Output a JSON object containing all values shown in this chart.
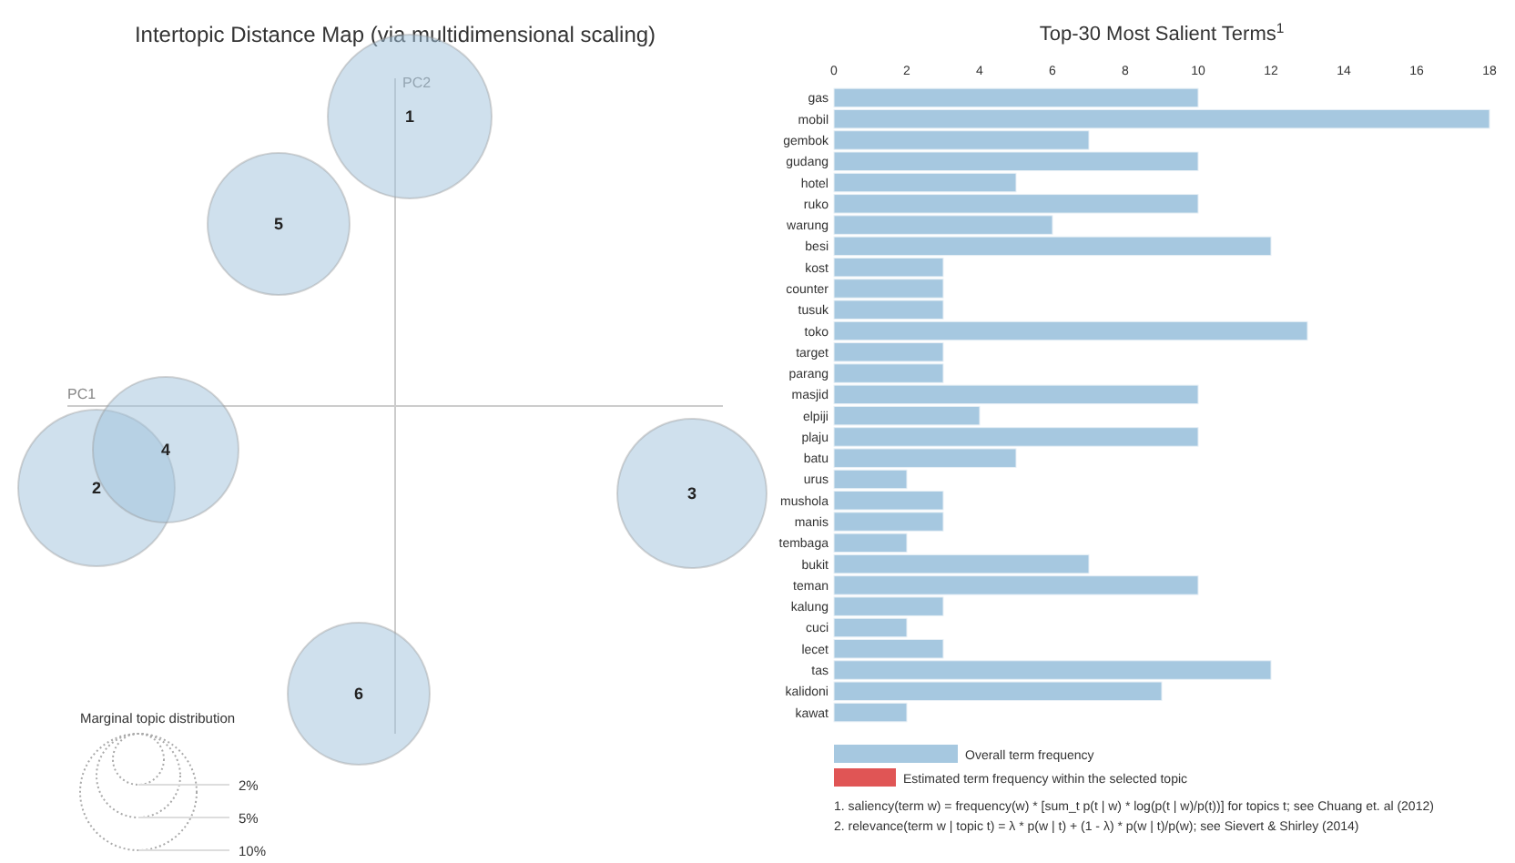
{
  "chart_data": [
    {
      "type": "other",
      "title": "Intertopic Distance Map (via multidimensional scaling)",
      "xlabel": "PC1",
      "ylabel": "PC2",
      "legend_title": "Marginal topic distribution",
      "annotations": [
        "1",
        "2",
        "3",
        "4",
        "5",
        "6",
        "2%",
        "5%",
        "10%"
      ]
    },
    {
      "type": "bar",
      "orientation": "horizontal",
      "title": "Top-30 Most Salient Terms$^{1}$",
      "xlim": [
        0,
        18
      ],
      "xticks": [
        0,
        2,
        4,
        6,
        8,
        10,
        12,
        14,
        16,
        18
      ],
      "grid": false,
      "legend": "bottom",
      "categories": [
        "gas",
        "mobil",
        "gembok",
        "gudang",
        "hotel",
        "ruko",
        "warung",
        "besi",
        "kost",
        "counter",
        "tusuk",
        "toko",
        "target",
        "parang",
        "masjid",
        "elpiji",
        "plaju",
        "batu",
        "urus",
        "mushola",
        "manis",
        "tembaga",
        "bukit",
        "teman",
        "kalung",
        "cuci",
        "lecet",
        "tas",
        "kalidoni",
        "kawat"
      ],
      "series": [
        {
          "name": "Overall term frequency",
          "color": "#a6c8e0",
          "values": [
            10,
            18,
            7,
            10,
            5,
            10,
            6,
            12,
            3,
            3,
            3,
            13,
            3,
            3,
            10,
            4,
            10,
            5,
            2,
            3,
            3,
            2,
            7,
            10,
            3,
            2,
            3,
            12,
            9,
            2
          ]
        },
        {
          "name": "Estimated term frequency within the selected topic",
          "color": "#e05555",
          "values": [
            null,
            null,
            null,
            null,
            null,
            null,
            null,
            null,
            null,
            null,
            null,
            null,
            null,
            null,
            null,
            null,
            null,
            null,
            null,
            null,
            null,
            null,
            null,
            null,
            null,
            null,
            null,
            null,
            null,
            null
          ]
        }
      ],
      "annotations": [
        "1. saliency(term w) = frequency(w) * [sum_t p(t | w) * log(p(t | w)/p(t))] for topics t; see Chuang et. al (2012)",
        "2. relevance(term w | topic t) = λ * p(w | t) + (1 - λ) * p(w | t)/p(w); see Sievert & Shirley (2014)"
      ]
    }
  ]
}
